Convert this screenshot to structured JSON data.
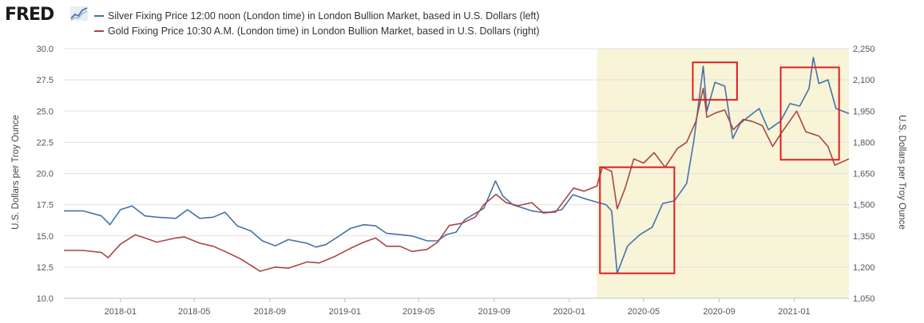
{
  "header": {
    "logo_text": "FRED",
    "logo_icon": "trend-line-icon"
  },
  "colors": {
    "silver": "#4572a7",
    "gold": "#aa4643",
    "recession_shade": "#f8f4d8",
    "highlight_box": "#e01e1e"
  },
  "chart_data": {
    "type": "line",
    "title": "",
    "xlabel": "",
    "ylabel": "U.S. Dollars per Troy Ounce",
    "y2label": "U.S. Dollars per Troy Ounce",
    "xlim": [
      "2017-10-01",
      "2021-03-31"
    ],
    "ylim": [
      10.0,
      30.0
    ],
    "y2lim": [
      1050,
      2250
    ],
    "x_ticks": [
      "2018-01",
      "2018-05",
      "2018-09",
      "2019-01",
      "2019-05",
      "2019-09",
      "2020-01",
      "2020-05",
      "2020-09",
      "2021-01"
    ],
    "y_ticks": [
      "10.0",
      "12.5",
      "15.0",
      "17.5",
      "20.0",
      "22.5",
      "25.0",
      "27.5",
      "30.0"
    ],
    "y2_ticks": [
      "1,050",
      "1,200",
      "1,350",
      "1,500",
      "1,650",
      "1,800",
      "1,950",
      "2,100",
      "2,250"
    ],
    "grid": "horizontal",
    "legend_position": "top-left",
    "shaded_period": [
      "2020-02-15",
      "2021-03-31"
    ],
    "series": [
      {
        "name": "Silver Fixing Price 12:00 noon (London time) in London Bullion Market, based in U.S. Dollars (left)",
        "axis": "left",
        "points": [
          [
            "2017-10-01",
            17.0
          ],
          [
            "2017-11-01",
            17.0
          ],
          [
            "2017-12-01",
            16.6
          ],
          [
            "2017-12-15",
            15.9
          ],
          [
            "2018-01-01",
            17.1
          ],
          [
            "2018-01-20",
            17.4
          ],
          [
            "2018-02-10",
            16.6
          ],
          [
            "2018-03-01",
            16.5
          ],
          [
            "2018-04-01",
            16.4
          ],
          [
            "2018-04-20",
            17.1
          ],
          [
            "2018-05-10",
            16.4
          ],
          [
            "2018-06-01",
            16.5
          ],
          [
            "2018-06-20",
            16.9
          ],
          [
            "2018-07-10",
            15.8
          ],
          [
            "2018-08-01",
            15.4
          ],
          [
            "2018-08-20",
            14.6
          ],
          [
            "2018-09-10",
            14.2
          ],
          [
            "2018-10-01",
            14.7
          ],
          [
            "2018-11-01",
            14.4
          ],
          [
            "2018-11-15",
            14.1
          ],
          [
            "2018-12-01",
            14.3
          ],
          [
            "2018-12-20",
            14.9
          ],
          [
            "2019-01-10",
            15.6
          ],
          [
            "2019-02-01",
            15.9
          ],
          [
            "2019-02-20",
            15.8
          ],
          [
            "2019-03-10",
            15.2
          ],
          [
            "2019-04-01",
            15.1
          ],
          [
            "2019-04-20",
            15.0
          ],
          [
            "2019-05-15",
            14.6
          ],
          [
            "2019-06-01",
            14.6
          ],
          [
            "2019-06-15",
            15.1
          ],
          [
            "2019-07-01",
            15.3
          ],
          [
            "2019-07-15",
            16.3
          ],
          [
            "2019-08-01",
            16.8
          ],
          [
            "2019-08-15",
            17.2
          ],
          [
            "2019-09-03",
            19.4
          ],
          [
            "2019-09-15",
            18.2
          ],
          [
            "2019-10-01",
            17.5
          ],
          [
            "2019-11-01",
            17.0
          ],
          [
            "2019-11-15",
            16.9
          ],
          [
            "2019-12-01",
            16.9
          ],
          [
            "2019-12-20",
            17.1
          ],
          [
            "2020-01-07",
            18.3
          ],
          [
            "2020-01-25",
            18.0
          ],
          [
            "2020-02-15",
            17.7
          ],
          [
            "2020-03-01",
            17.5
          ],
          [
            "2020-03-10",
            17.0
          ],
          [
            "2020-03-19",
            12.0
          ],
          [
            "2020-04-05",
            14.2
          ],
          [
            "2020-04-25",
            15.1
          ],
          [
            "2020-05-15",
            15.7
          ],
          [
            "2020-06-01",
            17.6
          ],
          [
            "2020-06-20",
            17.8
          ],
          [
            "2020-07-10",
            19.2
          ],
          [
            "2020-07-22",
            22.7
          ],
          [
            "2020-08-06",
            28.6
          ],
          [
            "2020-08-12",
            25.0
          ],
          [
            "2020-08-25",
            27.3
          ],
          [
            "2020-09-10",
            27.0
          ],
          [
            "2020-09-23",
            22.8
          ],
          [
            "2020-10-05",
            24.0
          ],
          [
            "2020-10-20",
            24.6
          ],
          [
            "2020-11-05",
            25.2
          ],
          [
            "2020-11-20",
            23.5
          ],
          [
            "2020-12-10",
            24.2
          ],
          [
            "2020-12-25",
            25.6
          ],
          [
            "2021-01-10",
            25.4
          ],
          [
            "2021-01-25",
            26.8
          ],
          [
            "2021-02-01",
            29.3
          ],
          [
            "2021-02-10",
            27.2
          ],
          [
            "2021-02-25",
            27.5
          ],
          [
            "2021-03-10",
            25.2
          ],
          [
            "2021-03-31",
            24.8
          ]
        ]
      },
      {
        "name": "Gold Fixing Price 10:30 A.M. (London time) in London Bullion Market, based in U.S. Dollars (right)",
        "axis": "right",
        "points": [
          [
            "2017-10-01",
            1280
          ],
          [
            "2017-11-01",
            1280
          ],
          [
            "2017-12-01",
            1270
          ],
          [
            "2017-12-12",
            1245
          ],
          [
            "2018-01-01",
            1310
          ],
          [
            "2018-01-25",
            1355
          ],
          [
            "2018-02-15",
            1335
          ],
          [
            "2018-03-01",
            1320
          ],
          [
            "2018-04-01",
            1340
          ],
          [
            "2018-04-15",
            1345
          ],
          [
            "2018-05-10",
            1315
          ],
          [
            "2018-06-01",
            1300
          ],
          [
            "2018-06-20",
            1275
          ],
          [
            "2018-07-15",
            1240
          ],
          [
            "2018-08-16",
            1180
          ],
          [
            "2018-09-10",
            1200
          ],
          [
            "2018-10-01",
            1195
          ],
          [
            "2018-11-01",
            1225
          ],
          [
            "2018-11-20",
            1220
          ],
          [
            "2018-12-15",
            1250
          ],
          [
            "2019-01-10",
            1290
          ],
          [
            "2019-02-01",
            1320
          ],
          [
            "2019-02-20",
            1340
          ],
          [
            "2019-03-10",
            1300
          ],
          [
            "2019-04-01",
            1300
          ],
          [
            "2019-04-20",
            1275
          ],
          [
            "2019-05-15",
            1285
          ],
          [
            "2019-06-01",
            1320
          ],
          [
            "2019-06-20",
            1400
          ],
          [
            "2019-07-10",
            1410
          ],
          [
            "2019-08-01",
            1440
          ],
          [
            "2019-08-15",
            1500
          ],
          [
            "2019-09-04",
            1550
          ],
          [
            "2019-09-20",
            1510
          ],
          [
            "2019-10-10",
            1495
          ],
          [
            "2019-11-01",
            1510
          ],
          [
            "2019-11-20",
            1460
          ],
          [
            "2019-12-10",
            1465
          ],
          [
            "2020-01-08",
            1580
          ],
          [
            "2020-01-25",
            1565
          ],
          [
            "2020-02-15",
            1590
          ],
          [
            "2020-02-24",
            1680
          ],
          [
            "2020-03-10",
            1660
          ],
          [
            "2020-03-19",
            1480
          ],
          [
            "2020-04-01",
            1580
          ],
          [
            "2020-04-15",
            1720
          ],
          [
            "2020-05-01",
            1700
          ],
          [
            "2020-05-18",
            1750
          ],
          [
            "2020-06-05",
            1680
          ],
          [
            "2020-06-25",
            1770
          ],
          [
            "2020-07-10",
            1800
          ],
          [
            "2020-07-25",
            1900
          ],
          [
            "2020-08-06",
            2060
          ],
          [
            "2020-08-12",
            1920
          ],
          [
            "2020-08-25",
            1940
          ],
          [
            "2020-09-10",
            1955
          ],
          [
            "2020-09-24",
            1860
          ],
          [
            "2020-10-10",
            1910
          ],
          [
            "2020-10-25",
            1900
          ],
          [
            "2020-11-10",
            1880
          ],
          [
            "2020-11-27",
            1780
          ],
          [
            "2020-12-10",
            1840
          ],
          [
            "2021-01-05",
            1950
          ],
          [
            "2021-01-20",
            1850
          ],
          [
            "2021-02-10",
            1830
          ],
          [
            "2021-02-25",
            1780
          ],
          [
            "2021-03-08",
            1690
          ],
          [
            "2021-03-31",
            1720
          ]
        ]
      }
    ],
    "annotations": [
      {
        "type": "box",
        "x": [
          "2020-02-20",
          "2020-06-20"
        ],
        "y": [
          12.0,
          20.5
        ]
      },
      {
        "type": "box",
        "x": [
          "2020-07-20",
          "2020-09-30"
        ],
        "y": [
          25.9,
          28.9
        ]
      },
      {
        "type": "box",
        "x": [
          "2020-12-10",
          "2021-03-15"
        ],
        "y": [
          21.1,
          28.5
        ]
      }
    ]
  }
}
